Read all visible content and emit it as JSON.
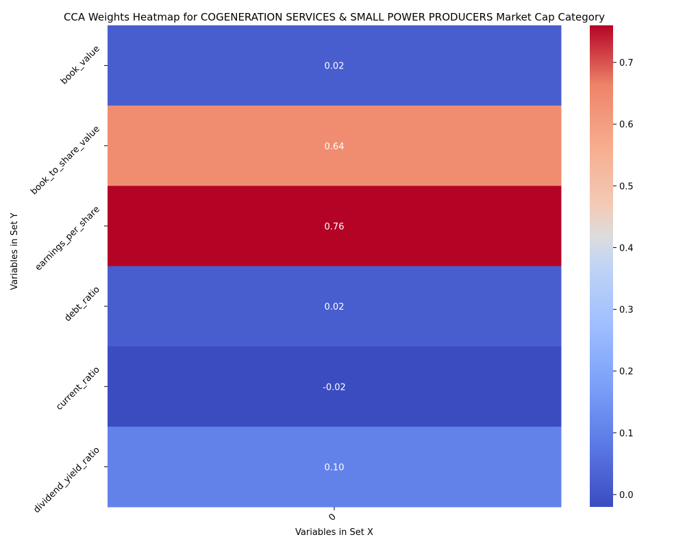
{
  "chart_data": {
    "type": "heatmap",
    "title": "CCA Weights Heatmap for COGENERATION SERVICES & SMALL POWER PRODUCERS Market Cap Category",
    "xlabel": "Variables in Set X",
    "ylabel": "Variables in Set Y",
    "x_categories": [
      "0"
    ],
    "y_categories": [
      "book_value",
      "book_to_share_value",
      "earnings_per_share",
      "debt_ratio",
      "current_ratio",
      "dividend_yield_ratio"
    ],
    "values": [
      [
        0.02
      ],
      [
        0.64
      ],
      [
        0.76
      ],
      [
        0.02
      ],
      [
        -0.02
      ],
      [
        0.1
      ]
    ],
    "value_labels": [
      "0.02",
      "0.64",
      "0.76",
      "0.02",
      "-0.02",
      "0.10"
    ],
    "colormap": "coolwarm",
    "colorbar": {
      "min": -0.02,
      "max": 0.76,
      "ticks": [
        0.0,
        0.1,
        0.2,
        0.3,
        0.4,
        0.5,
        0.6,
        0.7
      ],
      "tick_labels": [
        "0.0",
        "0.1",
        "0.2",
        "0.3",
        "0.4",
        "0.5",
        "0.6",
        "0.7"
      ]
    },
    "grid": false,
    "annotations_color": "#ffffff"
  }
}
